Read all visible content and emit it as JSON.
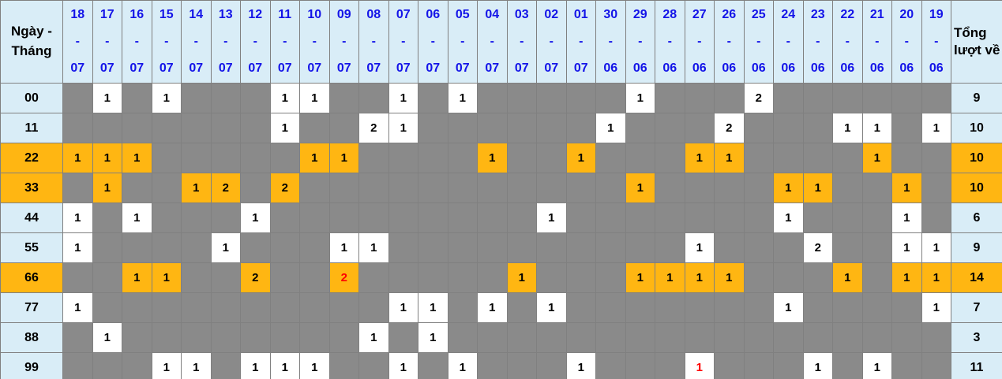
{
  "chart_data": {
    "type": "table",
    "corner_label": "Ngày - Tháng",
    "total_label": "Tổng lượt về",
    "date_separator": "-",
    "columns": [
      {
        "day": "18",
        "month": "07"
      },
      {
        "day": "17",
        "month": "07"
      },
      {
        "day": "16",
        "month": "07"
      },
      {
        "day": "15",
        "month": "07"
      },
      {
        "day": "14",
        "month": "07"
      },
      {
        "day": "13",
        "month": "07"
      },
      {
        "day": "12",
        "month": "07"
      },
      {
        "day": "11",
        "month": "07"
      },
      {
        "day": "10",
        "month": "07"
      },
      {
        "day": "09",
        "month": "07"
      },
      {
        "day": "08",
        "month": "07"
      },
      {
        "day": "07",
        "month": "07"
      },
      {
        "day": "06",
        "month": "07"
      },
      {
        "day": "05",
        "month": "07"
      },
      {
        "day": "04",
        "month": "07"
      },
      {
        "day": "03",
        "month": "07"
      },
      {
        "day": "02",
        "month": "07"
      },
      {
        "day": "01",
        "month": "07"
      },
      {
        "day": "30",
        "month": "06"
      },
      {
        "day": "29",
        "month": "06"
      },
      {
        "day": "28",
        "month": "06"
      },
      {
        "day": "27",
        "month": "06"
      },
      {
        "day": "26",
        "month": "06"
      },
      {
        "day": "25",
        "month": "06"
      },
      {
        "day": "24",
        "month": "06"
      },
      {
        "day": "23",
        "month": "06"
      },
      {
        "day": "22",
        "month": "06"
      },
      {
        "day": "21",
        "month": "06"
      },
      {
        "day": "20",
        "month": "06"
      },
      {
        "day": "19",
        "month": "06"
      }
    ],
    "rows": [
      {
        "label": "00",
        "highlight": false,
        "total": "9",
        "red": [],
        "cells": {
          "1": "1",
          "3": "1",
          "7": "1",
          "8": "1",
          "11": "1",
          "13": "1",
          "19": "1",
          "23": "2"
        }
      },
      {
        "label": "11",
        "highlight": false,
        "total": "10",
        "red": [],
        "cells": {
          "7": "1",
          "10": "2",
          "11": "1",
          "18": "1",
          "22": "2",
          "26": "1",
          "27": "1",
          "29": "1"
        }
      },
      {
        "label": "22",
        "highlight": true,
        "total": "10",
        "red": [],
        "cells": {
          "0": "1",
          "1": "1",
          "2": "1",
          "8": "1",
          "9": "1",
          "14": "1",
          "17": "1",
          "21": "1",
          "22": "1",
          "27": "1"
        }
      },
      {
        "label": "33",
        "highlight": true,
        "total": "10",
        "red": [],
        "cells": {
          "1": "1",
          "4": "1",
          "5": "2",
          "7": "2",
          "19": "1",
          "24": "1",
          "25": "1",
          "28": "1"
        }
      },
      {
        "label": "44",
        "highlight": false,
        "total": "6",
        "red": [],
        "cells": {
          "0": "1",
          "2": "1",
          "6": "1",
          "16": "1",
          "24": "1",
          "28": "1"
        }
      },
      {
        "label": "55",
        "highlight": false,
        "total": "9",
        "red": [],
        "cells": {
          "0": "1",
          "5": "1",
          "9": "1",
          "10": "1",
          "21": "1",
          "25": "2",
          "28": "1",
          "29": "1"
        }
      },
      {
        "label": "66",
        "highlight": true,
        "total": "14",
        "red": [
          9
        ],
        "cells": {
          "2": "1",
          "3": "1",
          "6": "2",
          "9": "2",
          "15": "1",
          "19": "1",
          "20": "1",
          "21": "1",
          "22": "1",
          "26": "1",
          "28": "1",
          "29": "1"
        }
      },
      {
        "label": "77",
        "highlight": false,
        "total": "7",
        "red": [],
        "cells": {
          "0": "1",
          "11": "1",
          "12": "1",
          "14": "1",
          "16": "1",
          "24": "1",
          "29": "1"
        }
      },
      {
        "label": "88",
        "highlight": false,
        "total": "3",
        "red": [],
        "cells": {
          "1": "1",
          "10": "1",
          "12": "1"
        }
      },
      {
        "label": "99",
        "highlight": false,
        "total": "11",
        "red": [
          21
        ],
        "cells": {
          "3": "1",
          "4": "1",
          "6": "1",
          "7": "1",
          "8": "1",
          "11": "1",
          "13": "1",
          "17": "1",
          "21": "1",
          "25": "1",
          "27": "1"
        }
      }
    ]
  },
  "colors": {
    "header_bg": "#D9EDF7",
    "date_text": "#1414E8",
    "label_text": "#000000",
    "empty_cell_bg": "#8A8A8A",
    "value_cell_bg": "#FFFFFF",
    "highlight_bg": "#FFB612",
    "special_value_text": "#FF0000",
    "grid_border": "#808080"
  }
}
